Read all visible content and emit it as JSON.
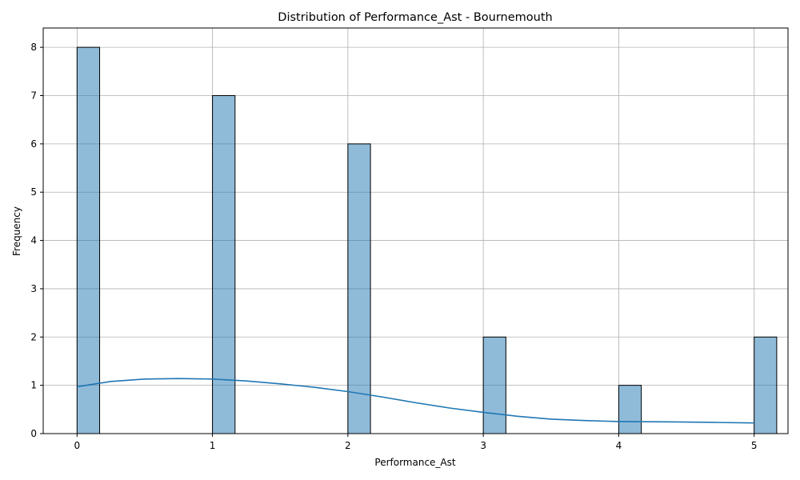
{
  "chart_data": {
    "type": "bar",
    "title": "Distribution of Performance_Ast - Bournemouth",
    "xlabel": "Performance_Ast",
    "ylabel": "Frequency",
    "xlim": [
      -0.25,
      5.25
    ],
    "ylim": [
      0,
      8.4
    ],
    "xticks": [
      0,
      1,
      2,
      3,
      4,
      5
    ],
    "yticks": [
      0,
      1,
      2,
      3,
      4,
      5,
      6,
      7,
      8
    ],
    "grid": true,
    "bin_width": 0.1667,
    "bars": [
      {
        "x": 0,
        "value": 8
      },
      {
        "x": 1,
        "value": 7
      },
      {
        "x": 2,
        "value": 6
      },
      {
        "x": 3,
        "value": 2
      },
      {
        "x": 4,
        "value": 1
      },
      {
        "x": 5,
        "value": 2
      }
    ],
    "kde": {
      "x": [
        0,
        0.25,
        0.5,
        0.75,
        1.0,
        1.25,
        1.5,
        1.75,
        2.0,
        2.25,
        2.5,
        2.75,
        3.0,
        3.25,
        3.5,
        3.75,
        4.0,
        4.25,
        4.5,
        4.75,
        5.0
      ],
      "y": [
        0.97,
        1.08,
        1.13,
        1.14,
        1.13,
        1.09,
        1.03,
        0.96,
        0.87,
        0.76,
        0.64,
        0.53,
        0.44,
        0.36,
        0.3,
        0.27,
        0.25,
        0.245,
        0.24,
        0.23,
        0.22
      ]
    }
  }
}
